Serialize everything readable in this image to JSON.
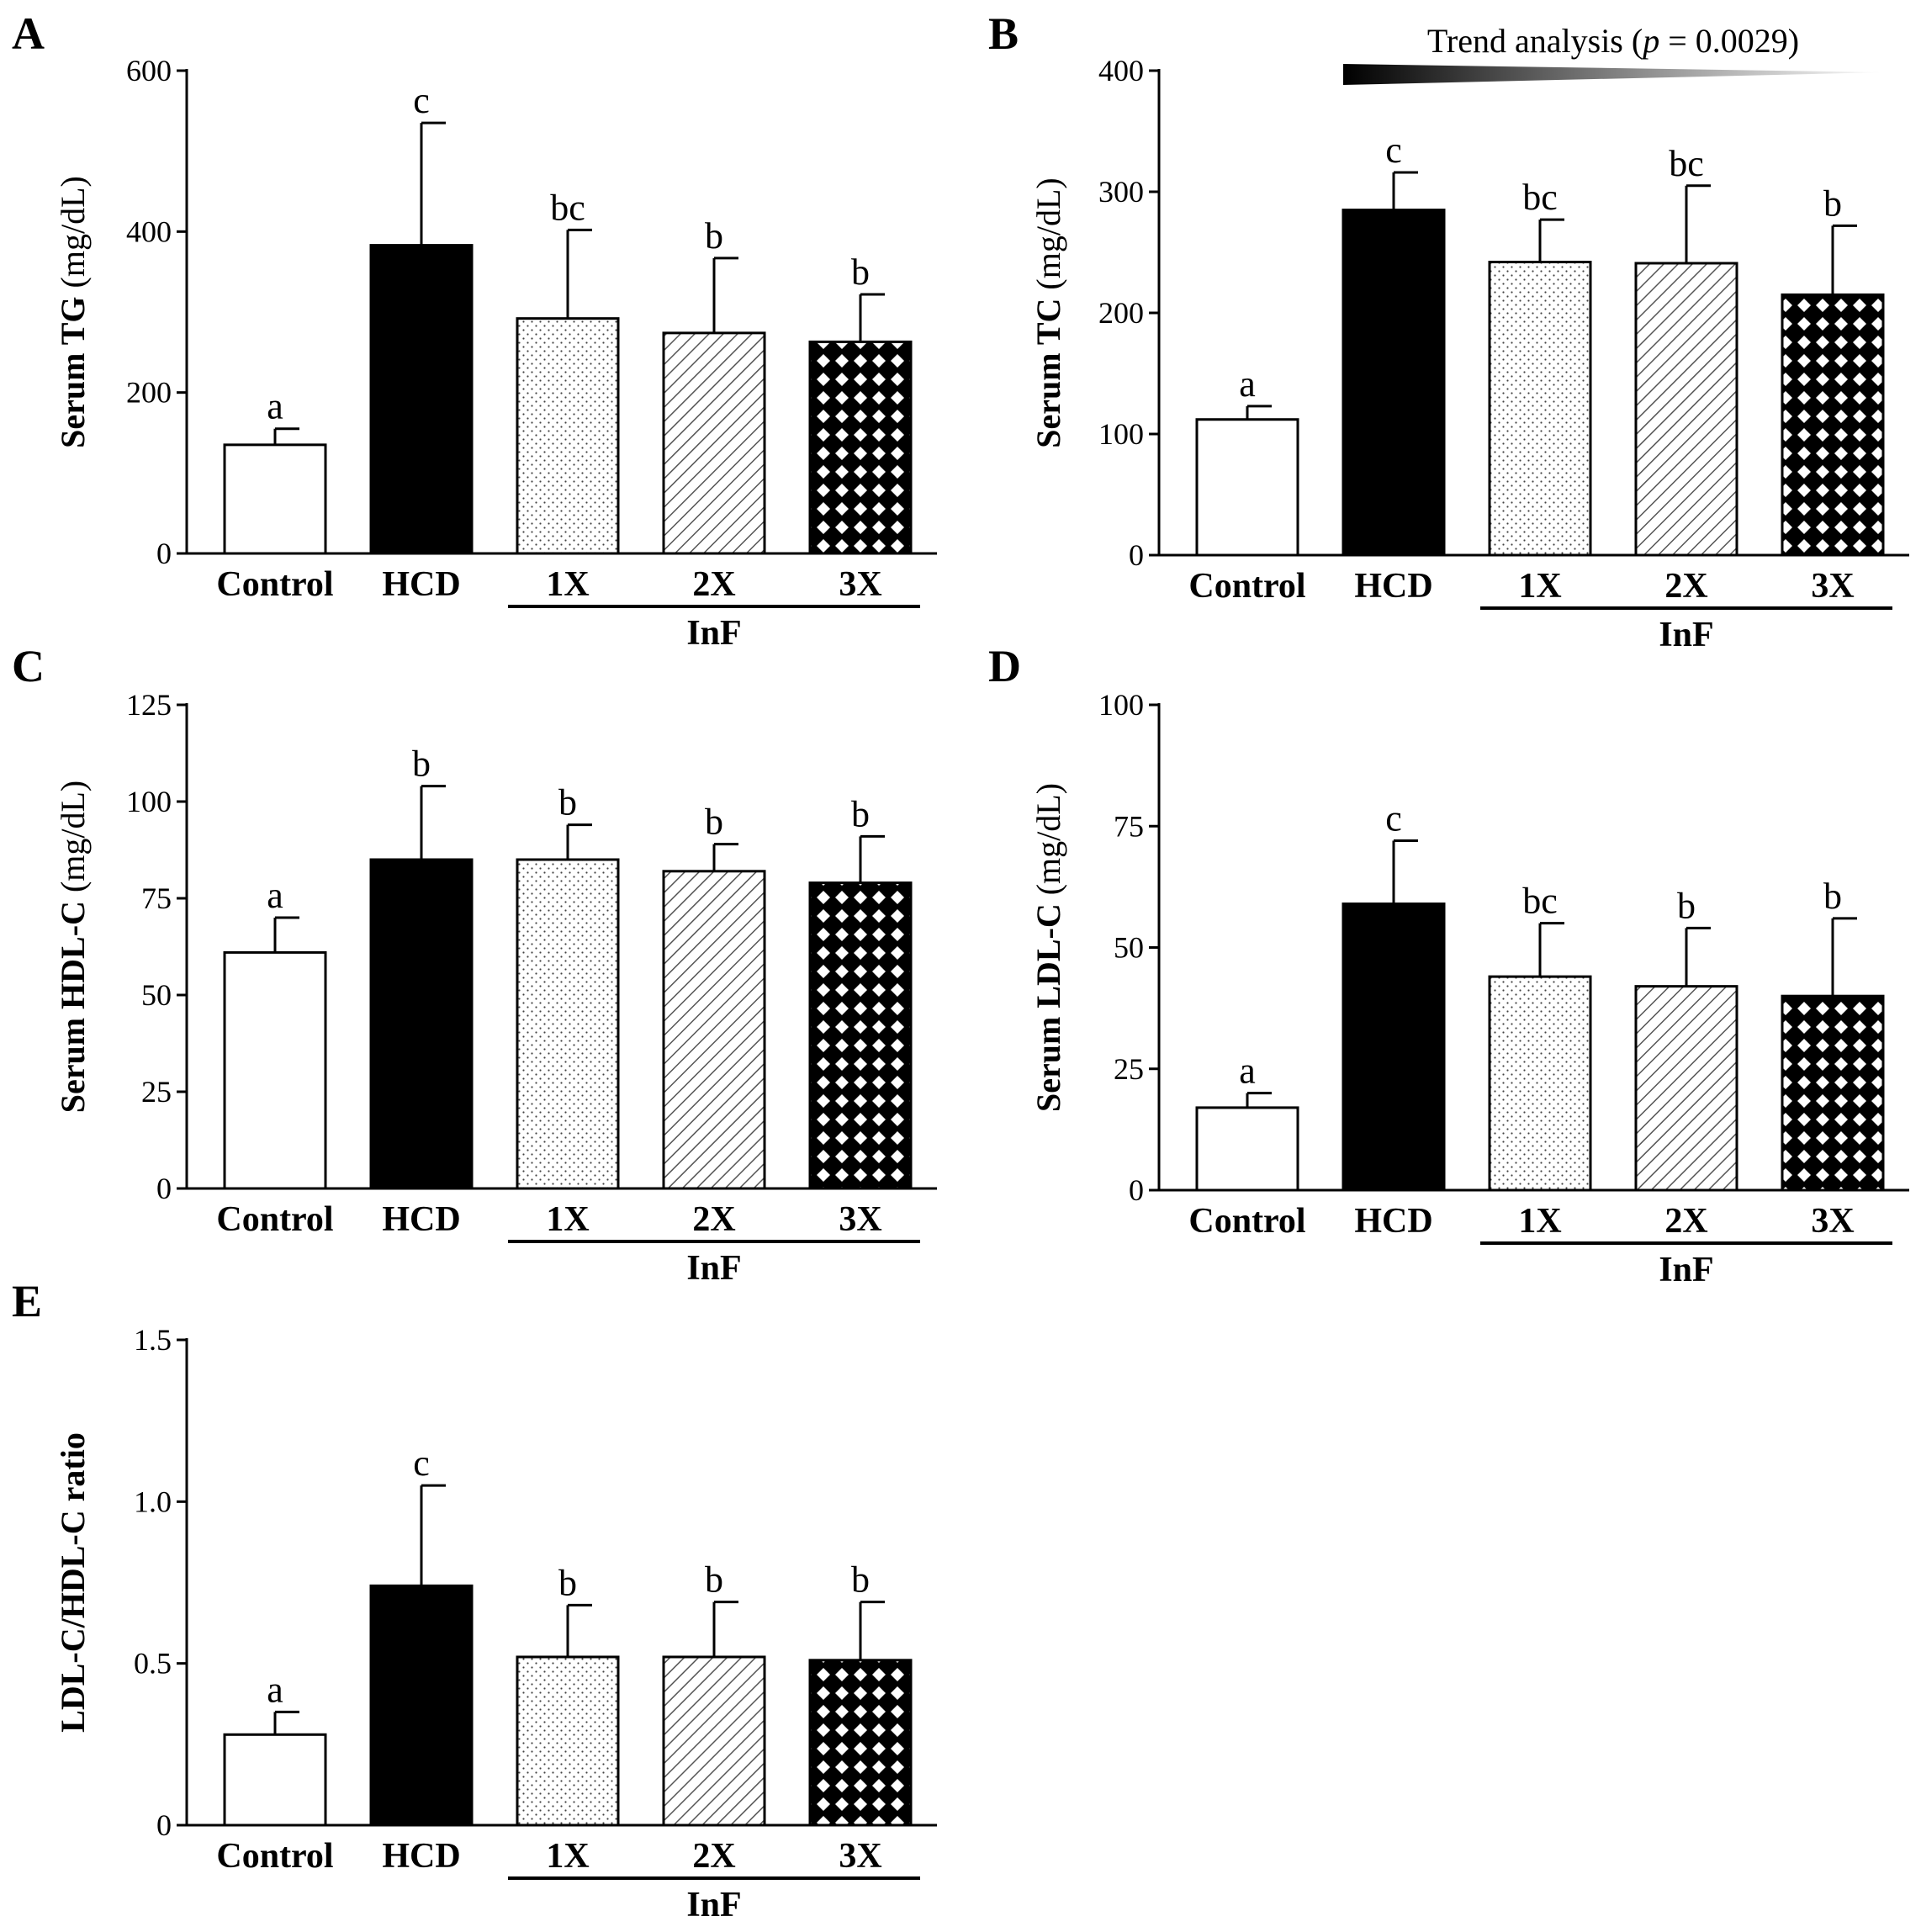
{
  "colors": {
    "ink": "#000000",
    "background": "#ffffff"
  },
  "fills": [
    "white",
    "black",
    "dots",
    "diagonal",
    "checker"
  ],
  "trend": {
    "text_prefix": "Trend analysis (",
    "p_symbol": "p",
    "text_suffix": " = 0.0029)",
    "panel": "B"
  },
  "chart_data": [
    {
      "id": "A",
      "type": "bar",
      "ylabel_bold": "Serum TG",
      "ylabel_rest": " (mg/dL)",
      "categories": [
        "Control",
        "HCD",
        "1X",
        "2X",
        "3X"
      ],
      "group_label": "InF",
      "ylim": [
        0,
        600
      ],
      "yticks": [
        0,
        200,
        400,
        600
      ],
      "ytick_labels": [
        "0",
        "200",
        "400",
        "600"
      ],
      "values": [
        135,
        383,
        292,
        274,
        263
      ],
      "errors": [
        20,
        152,
        110,
        93,
        59
      ],
      "sig_letters": [
        "a",
        "c",
        "bc",
        "b",
        "b"
      ]
    },
    {
      "id": "B",
      "type": "bar",
      "ylabel_bold": "Serum TC",
      "ylabel_rest": " (mg/dL)",
      "categories": [
        "Control",
        "HCD",
        "1X",
        "2X",
        "3X"
      ],
      "group_label": "InF",
      "ylim": [
        0,
        400
      ],
      "yticks": [
        0,
        100,
        200,
        300,
        400
      ],
      "ytick_labels": [
        "0",
        "100",
        "200",
        "300",
        "400"
      ],
      "values": [
        112,
        285,
        242,
        241,
        215
      ],
      "errors": [
        11,
        31,
        35,
        64,
        57
      ],
      "sig_letters": [
        "a",
        "c",
        "bc",
        "bc",
        "b"
      ]
    },
    {
      "id": "C",
      "type": "bar",
      "ylabel_bold": "Serum HDL-C",
      "ylabel_rest": " (mg/dL)",
      "categories": [
        "Control",
        "HCD",
        "1X",
        "2X",
        "3X"
      ],
      "group_label": "InF",
      "ylim": [
        0,
        125
      ],
      "yticks": [
        0,
        25,
        50,
        75,
        100,
        125
      ],
      "ytick_labels": [
        "0",
        "25",
        "50",
        "75",
        "100",
        "125"
      ],
      "values": [
        61,
        85,
        85,
        82,
        79
      ],
      "errors": [
        9,
        19,
        9,
        7,
        12
      ],
      "sig_letters": [
        "a",
        "b",
        "b",
        "b",
        "b"
      ]
    },
    {
      "id": "D",
      "type": "bar",
      "ylabel_bold": "Serum LDL-C",
      "ylabel_rest": " (mg/dL)",
      "categories": [
        "Control",
        "HCD",
        "1X",
        "2X",
        "3X"
      ],
      "group_label": "InF",
      "ylim": [
        0,
        100
      ],
      "yticks": [
        0,
        25,
        50,
        75,
        100
      ],
      "ytick_labels": [
        "0",
        "25",
        "50",
        "75",
        "100"
      ],
      "values": [
        17,
        59,
        44,
        42,
        40
      ],
      "errors": [
        3,
        13,
        11,
        12,
        16
      ],
      "sig_letters": [
        "a",
        "c",
        "bc",
        "b",
        "b"
      ]
    },
    {
      "id": "E",
      "type": "bar",
      "ylabel_bold": "LDL-C/HDL-C ratio",
      "ylabel_rest": "",
      "categories": [
        "Control",
        "HCD",
        "1X",
        "2X",
        "3X"
      ],
      "group_label": "InF",
      "ylim": [
        0,
        1.5
      ],
      "yticks": [
        0,
        0.5,
        1.0,
        1.5
      ],
      "ytick_labels": [
        "0",
        "0.5",
        "1.0",
        "1.5"
      ],
      "values": [
        0.28,
        0.74,
        0.52,
        0.52,
        0.51
      ],
      "errors": [
        0.07,
        0.31,
        0.16,
        0.17,
        0.18
      ],
      "sig_letters": [
        "a",
        "c",
        "b",
        "b",
        "b"
      ]
    }
  ]
}
